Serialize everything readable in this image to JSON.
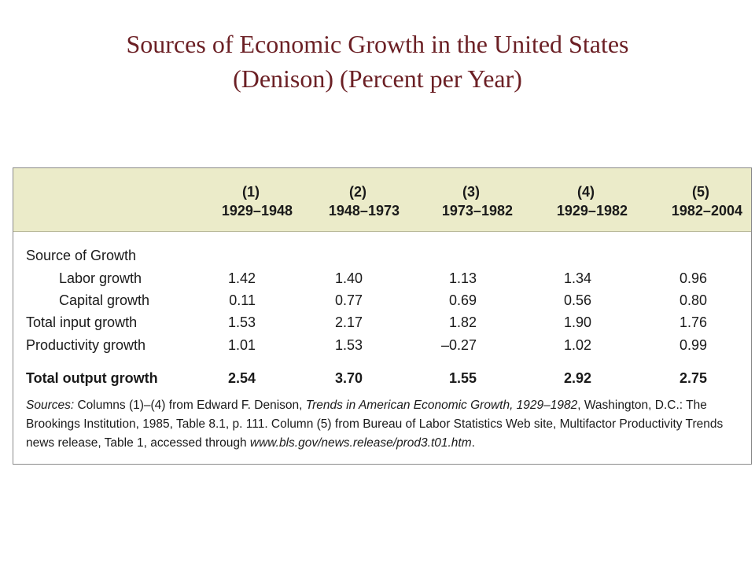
{
  "title": {
    "line1": "Sources of Economic Growth in the United States",
    "line2": "(Denison) (Percent per Year)"
  },
  "table": {
    "columns": [
      {
        "number": "(1)",
        "period": "1929–1948"
      },
      {
        "number": "(2)",
        "period": "1948–1973"
      },
      {
        "number": "(3)",
        "period": "1973–1982"
      },
      {
        "number": "(4)",
        "period": "1929–1982"
      },
      {
        "number": "(5)",
        "period": "1982–2004"
      }
    ],
    "section_heading": "Source of Growth",
    "rows": [
      {
        "label": "Labor growth",
        "values": [
          "1.42",
          "1.40",
          "1.13",
          "1.34",
          "0.96"
        ]
      },
      {
        "label": "Capital growth",
        "values": [
          "0.11",
          "0.77",
          "0.69",
          "0.56",
          "0.80"
        ]
      },
      {
        "label": "Total input growth",
        "values": [
          "1.53",
          "2.17",
          "1.82",
          "1.90",
          "1.76"
        ]
      },
      {
        "label": "Productivity growth",
        "values": [
          "1.01",
          "1.53",
          "–0.27",
          "1.02",
          "0.99"
        ]
      }
    ],
    "total_row": {
      "label": "Total output growth",
      "values": [
        "2.54",
        "3.70",
        "1.55",
        "2.92",
        "2.75"
      ]
    }
  },
  "sources": {
    "prefix": "Sources:",
    "text1": " Columns (1)–(4) from Edward F. Denison, ",
    "book": "Trends in American Economic Growth, 1929–1982",
    "text2": ", Washington, D.C.: The Brookings Institution, 1985, Table 8.1, p. 111. Column (5) from Bureau of Labor Statistics Web site, Multifactor Productivity Trends news release, Table 1, accessed through ",
    "url": "www.bls.gov/news.release/prod3.t01.htm",
    "suffix": "."
  }
}
